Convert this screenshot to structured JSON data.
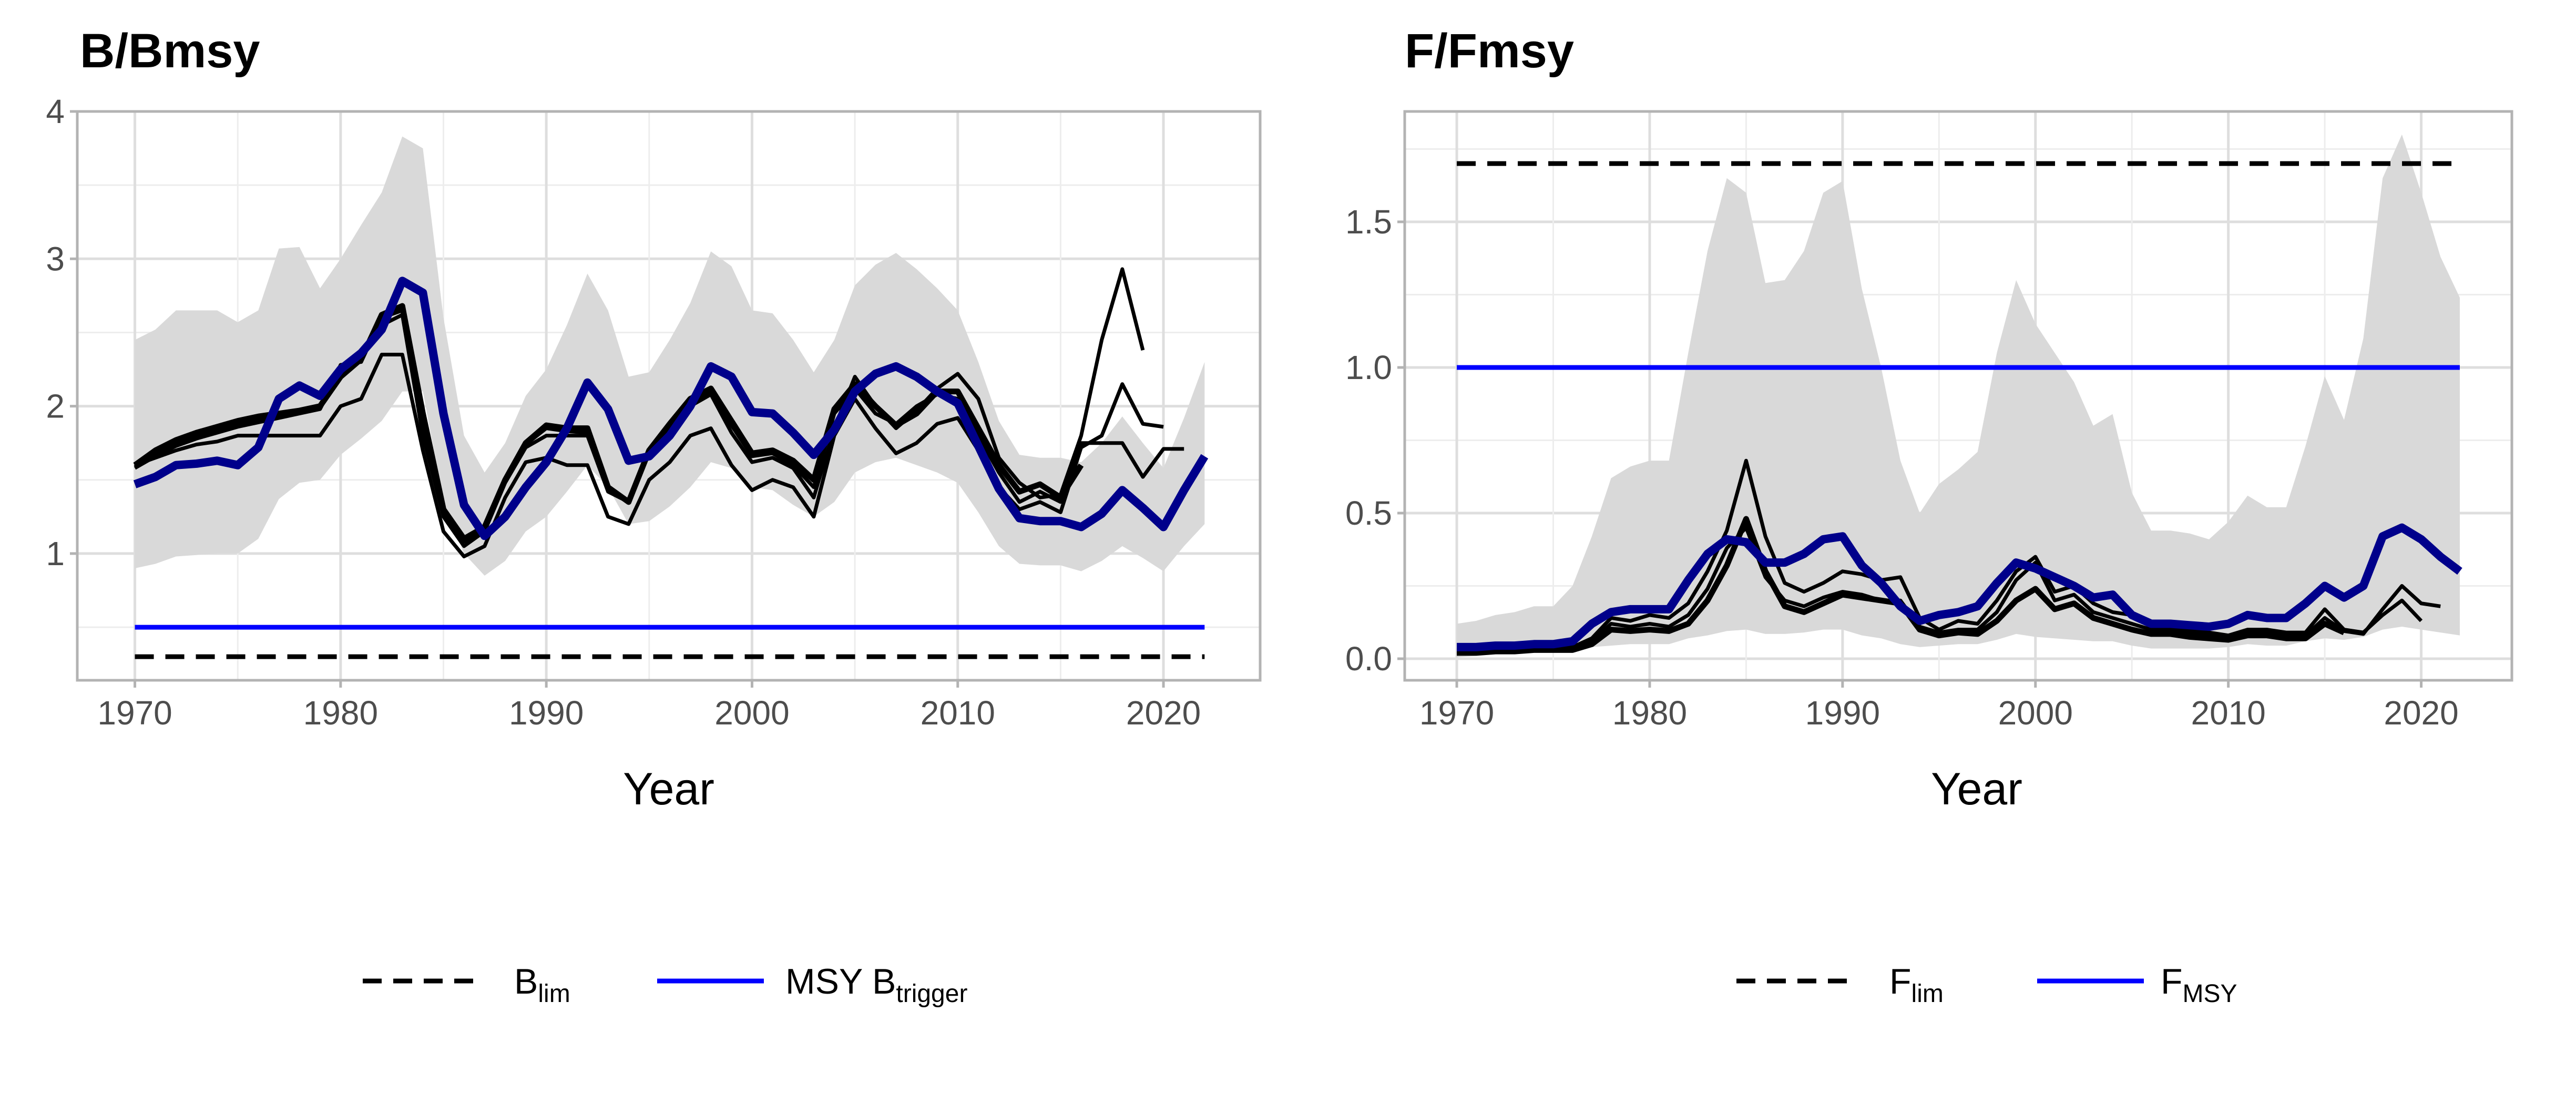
{
  "years": [
    1970,
    1971,
    1972,
    1973,
    1974,
    1975,
    1976,
    1977,
    1978,
    1979,
    1980,
    1981,
    1982,
    1983,
    1984,
    1985,
    1986,
    1987,
    1988,
    1989,
    1990,
    1991,
    1992,
    1993,
    1994,
    1995,
    1996,
    1997,
    1998,
    1999,
    2000,
    2001,
    2002,
    2003,
    2004,
    2005,
    2006,
    2007,
    2008,
    2009,
    2010,
    2011,
    2012,
    2013,
    2014,
    2015,
    2016,
    2017,
    2018,
    2019,
    2020,
    2021,
    2022
  ],
  "colors": {
    "main": "#00008B",
    "reference": "#0000FF",
    "retro": "#000000",
    "band": "#D9D9D9"
  },
  "chart_data": [
    {
      "type": "line",
      "title": "B/Bmsy",
      "xlabel": "Year",
      "ylabel": "",
      "xlim": [
        1967.2,
        2024.7
      ],
      "ylim": [
        0.14,
        4.0
      ],
      "xticks": [
        "1970",
        "1980",
        "1990",
        "2000",
        "2010",
        "2020"
      ],
      "yticks": [
        "1",
        "2",
        "3",
        "4"
      ],
      "grid": true,
      "legend_position": "bottom",
      "band": {
        "upper": [
          2.45,
          2.52,
          2.65,
          2.65,
          2.65,
          2.57,
          2.65,
          3.07,
          3.08,
          2.8,
          3.0,
          3.23,
          3.45,
          3.83,
          3.75,
          2.6,
          1.8,
          1.55,
          1.75,
          2.07,
          2.25,
          2.55,
          2.9,
          2.65,
          2.2,
          2.23,
          2.45,
          2.7,
          3.05,
          2.95,
          2.65,
          2.63,
          2.45,
          2.23,
          2.45,
          2.82,
          2.96,
          3.04,
          2.93,
          2.8,
          2.65,
          2.3,
          1.9,
          1.67,
          1.65,
          1.65,
          1.62,
          1.75,
          1.93,
          1.75,
          1.58,
          1.92,
          2.3
        ],
        "lower": [
          0.9,
          0.93,
          0.98,
          0.99,
          1.0,
          1.0,
          1.1,
          1.37,
          1.48,
          1.5,
          1.67,
          1.78,
          1.9,
          2.1,
          2.1,
          1.35,
          1.0,
          0.85,
          0.95,
          1.15,
          1.25,
          1.42,
          1.6,
          1.45,
          1.2,
          1.22,
          1.32,
          1.45,
          1.62,
          1.58,
          1.45,
          1.43,
          1.33,
          1.25,
          1.35,
          1.55,
          1.62,
          1.65,
          1.6,
          1.55,
          1.48,
          1.28,
          1.05,
          0.93,
          0.92,
          0.92,
          0.88,
          0.95,
          1.05,
          0.97,
          0.88,
          1.05,
          1.2
        ]
      },
      "main": [
        1.47,
        1.52,
        1.6,
        1.61,
        1.63,
        1.6,
        1.72,
        2.05,
        2.14,
        2.07,
        2.25,
        2.36,
        2.52,
        2.85,
        2.77,
        1.95,
        1.33,
        1.12,
        1.25,
        1.45,
        1.62,
        1.85,
        2.16,
        1.98,
        1.63,
        1.66,
        1.8,
        2.0,
        2.27,
        2.2,
        1.96,
        1.95,
        1.82,
        1.67,
        1.84,
        2.1,
        2.22,
        2.27,
        2.2,
        2.1,
        2.02,
        1.73,
        1.44,
        1.24,
        1.22,
        1.22,
        1.18,
        1.27,
        1.43,
        1.31,
        1.18,
        1.43,
        1.66
      ],
      "retro": [
        {
          "width": "thick",
          "values": [
            1.6,
            1.7,
            1.77,
            1.82,
            1.86,
            1.9,
            1.93,
            1.95,
            1.97,
            2.0,
            2.2,
            2.32,
            2.62,
            2.68,
            1.95,
            1.3,
            1.1,
            1.18,
            1.5,
            1.75,
            1.87,
            1.85,
            1.85,
            1.45,
            1.35,
            1.7,
            1.88,
            2.05,
            2.12,
            1.9,
            1.68,
            1.7,
            1.63,
            1.5,
            1.98,
            2.15,
            2.0,
            1.87,
            1.95,
            2.1,
            2.1,
            1.85,
            1.6,
            1.42,
            1.47,
            1.38,
            1.6
          ]
        },
        {
          "width": "thin",
          "values": [
            1.58,
            1.66,
            1.73,
            1.78,
            1.82,
            1.86,
            1.89,
            1.92,
            1.95,
            1.98,
            2.25,
            2.35,
            2.55,
            2.62,
            1.8,
            1.25,
            1.05,
            1.15,
            1.48,
            1.72,
            1.8,
            1.8,
            1.8,
            1.42,
            1.35,
            1.68,
            1.85,
            2.0,
            2.08,
            1.82,
            1.62,
            1.65,
            1.58,
            1.38,
            1.85,
            2.2,
            2.0,
            1.85,
            1.97,
            2.12,
            2.22,
            2.05,
            1.65,
            1.48,
            1.38,
            1.4,
            1.8,
            2.45,
            2.93,
            2.38
          ]
        },
        {
          "width": "thin",
          "values": [
            1.6,
            1.65,
            1.7,
            1.74,
            1.76,
            1.8,
            1.8,
            1.8,
            1.8,
            1.8,
            2.0,
            2.05,
            2.35,
            2.35,
            1.7,
            1.15,
            0.98,
            1.05,
            1.38,
            1.62,
            1.65,
            1.6,
            1.6,
            1.25,
            1.2,
            1.5,
            1.62,
            1.8,
            1.85,
            1.6,
            1.43,
            1.5,
            1.45,
            1.25,
            1.8,
            2.05,
            1.85,
            1.68,
            1.75,
            1.88,
            1.92,
            1.7,
            1.45,
            1.3,
            1.35,
            1.28,
            1.72,
            1.8,
            2.15,
            1.88,
            1.86
          ]
        },
        {
          "width": "thin",
          "values": [
            1.59,
            1.68,
            1.75,
            1.8,
            1.84,
            1.88,
            1.91,
            1.93,
            1.96,
            1.99,
            2.28,
            2.3,
            2.6,
            2.65,
            1.85,
            1.28,
            1.08,
            1.16,
            1.5,
            1.74,
            1.85,
            1.83,
            1.82,
            1.44,
            1.36,
            1.7,
            1.86,
            2.03,
            2.1,
            1.87,
            1.66,
            1.68,
            1.6,
            1.45,
            1.95,
            2.12,
            1.95,
            1.88,
            2.0,
            2.08,
            2.05,
            1.8,
            1.55,
            1.35,
            1.42,
            1.35,
            1.75,
            1.75,
            1.75,
            1.52,
            1.71,
            1.71
          ]
        }
      ],
      "reference_lines": [
        {
          "name": "B",
          "subscript": "lim",
          "value": 0.3,
          "style": "dashed",
          "color": "#000000"
        },
        {
          "name": "MSY B",
          "subscript": "trigger",
          "value": 0.5,
          "style": "solid",
          "color": "#0000FF"
        }
      ]
    },
    {
      "type": "line",
      "title": "F/Fmsy",
      "xlabel": "Year",
      "ylabel": "",
      "xlim": [
        1967.3,
        2024.7
      ],
      "ylim": [
        -0.074,
        1.879
      ],
      "xticks": [
        "1970",
        "1980",
        "1990",
        "2000",
        "2010",
        "2020"
      ],
      "yticks": [
        "0.0",
        "0.5",
        "1.0",
        "1.5"
      ],
      "grid": true,
      "legend_position": "bottom",
      "band": {
        "upper": [
          0.12,
          0.13,
          0.15,
          0.16,
          0.18,
          0.18,
          0.25,
          0.42,
          0.62,
          0.66,
          0.68,
          0.68,
          1.05,
          1.4,
          1.65,
          1.6,
          1.29,
          1.3,
          1.4,
          1.6,
          1.64,
          1.27,
          1.0,
          0.68,
          0.5,
          0.6,
          0.65,
          0.71,
          1.05,
          1.3,
          1.15,
          1.05,
          0.95,
          0.8,
          0.84,
          0.57,
          0.44,
          0.44,
          0.43,
          0.41,
          0.47,
          0.56,
          0.52,
          0.52,
          0.73,
          0.97,
          0.82,
          1.1,
          1.65,
          1.8,
          1.6,
          1.38,
          1.24
        ],
        "lower": [
          0.005,
          0.01,
          0.015,
          0.02,
          0.025,
          0.025,
          0.03,
          0.04,
          0.045,
          0.05,
          0.05,
          0.05,
          0.07,
          0.08,
          0.095,
          0.1,
          0.085,
          0.085,
          0.09,
          0.1,
          0.1,
          0.08,
          0.07,
          0.05,
          0.04,
          0.045,
          0.05,
          0.05,
          0.065,
          0.085,
          0.075,
          0.07,
          0.065,
          0.06,
          0.06,
          0.045,
          0.035,
          0.035,
          0.035,
          0.035,
          0.04,
          0.05,
          0.045,
          0.045,
          0.06,
          0.07,
          0.065,
          0.075,
          0.1,
          0.11,
          0.1,
          0.09,
          0.08
        ]
      },
      "main": [
        0.04,
        0.04,
        0.045,
        0.045,
        0.05,
        0.05,
        0.06,
        0.12,
        0.16,
        0.17,
        0.17,
        0.17,
        0.27,
        0.36,
        0.41,
        0.4,
        0.33,
        0.33,
        0.36,
        0.41,
        0.42,
        0.32,
        0.26,
        0.18,
        0.13,
        0.15,
        0.16,
        0.18,
        0.26,
        0.33,
        0.31,
        0.28,
        0.25,
        0.21,
        0.22,
        0.15,
        0.12,
        0.12,
        0.115,
        0.11,
        0.12,
        0.15,
        0.14,
        0.14,
        0.19,
        0.25,
        0.21,
        0.25,
        0.42,
        0.45,
        0.41,
        0.35,
        0.3
      ],
      "retro": [
        {
          "width": "thick",
          "values": [
            0.02,
            0.02,
            0.025,
            0.025,
            0.03,
            0.03,
            0.03,
            0.05,
            0.1,
            0.095,
            0.1,
            0.095,
            0.12,
            0.2,
            0.32,
            0.48,
            0.3,
            0.18,
            0.16,
            0.19,
            0.22,
            0.21,
            0.2,
            0.19,
            0.1,
            0.08,
            0.09,
            0.085,
            0.13,
            0.2,
            0.24,
            0.17,
            0.19,
            0.14,
            0.12,
            0.1,
            0.085,
            0.085,
            0.075,
            0.07,
            0.065,
            0.08,
            0.08,
            0.07,
            0.07,
            0.12,
            0.09
          ]
        },
        {
          "width": "thin",
          "values": [
            0.03,
            0.03,
            0.035,
            0.035,
            0.04,
            0.04,
            0.04,
            0.07,
            0.14,
            0.13,
            0.15,
            0.14,
            0.19,
            0.3,
            0.44,
            0.68,
            0.42,
            0.26,
            0.23,
            0.26,
            0.3,
            0.29,
            0.27,
            0.28,
            0.14,
            0.1,
            0.13,
            0.12,
            0.2,
            0.3,
            0.35,
            0.23,
            0.25,
            0.19,
            0.16,
            0.15,
            0.11,
            0.11,
            0.1,
            0.09,
            0.08,
            0.1,
            0.1,
            0.09,
            0.09,
            0.17,
            0.1,
            0.09,
            0.15,
            0.2,
            0.13
          ]
        },
        {
          "width": "thin",
          "values": [
            0.025,
            0.025,
            0.03,
            0.03,
            0.035,
            0.035,
            0.035,
            0.06,
            0.12,
            0.11,
            0.12,
            0.11,
            0.15,
            0.24,
            0.38,
            0.45,
            0.28,
            0.2,
            0.18,
            0.21,
            0.23,
            0.22,
            0.2,
            0.2,
            0.11,
            0.09,
            0.1,
            0.1,
            0.16,
            0.27,
            0.33,
            0.2,
            0.22,
            0.16,
            0.14,
            0.12,
            0.1,
            0.1,
            0.09,
            0.08,
            0.075,
            0.09,
            0.09,
            0.08,
            0.08,
            0.14,
            0.095,
            0.085,
            0.17,
            0.25,
            0.19,
            0.18
          ]
        }
      ],
      "reference_lines": [
        {
          "name": "F",
          "subscript": "lim",
          "value": 1.7,
          "style": "dashed",
          "color": "#000000"
        },
        {
          "name": "F",
          "subscript": "MSY",
          "value": 1.0,
          "style": "solid",
          "color": "#0000FF"
        }
      ]
    }
  ]
}
